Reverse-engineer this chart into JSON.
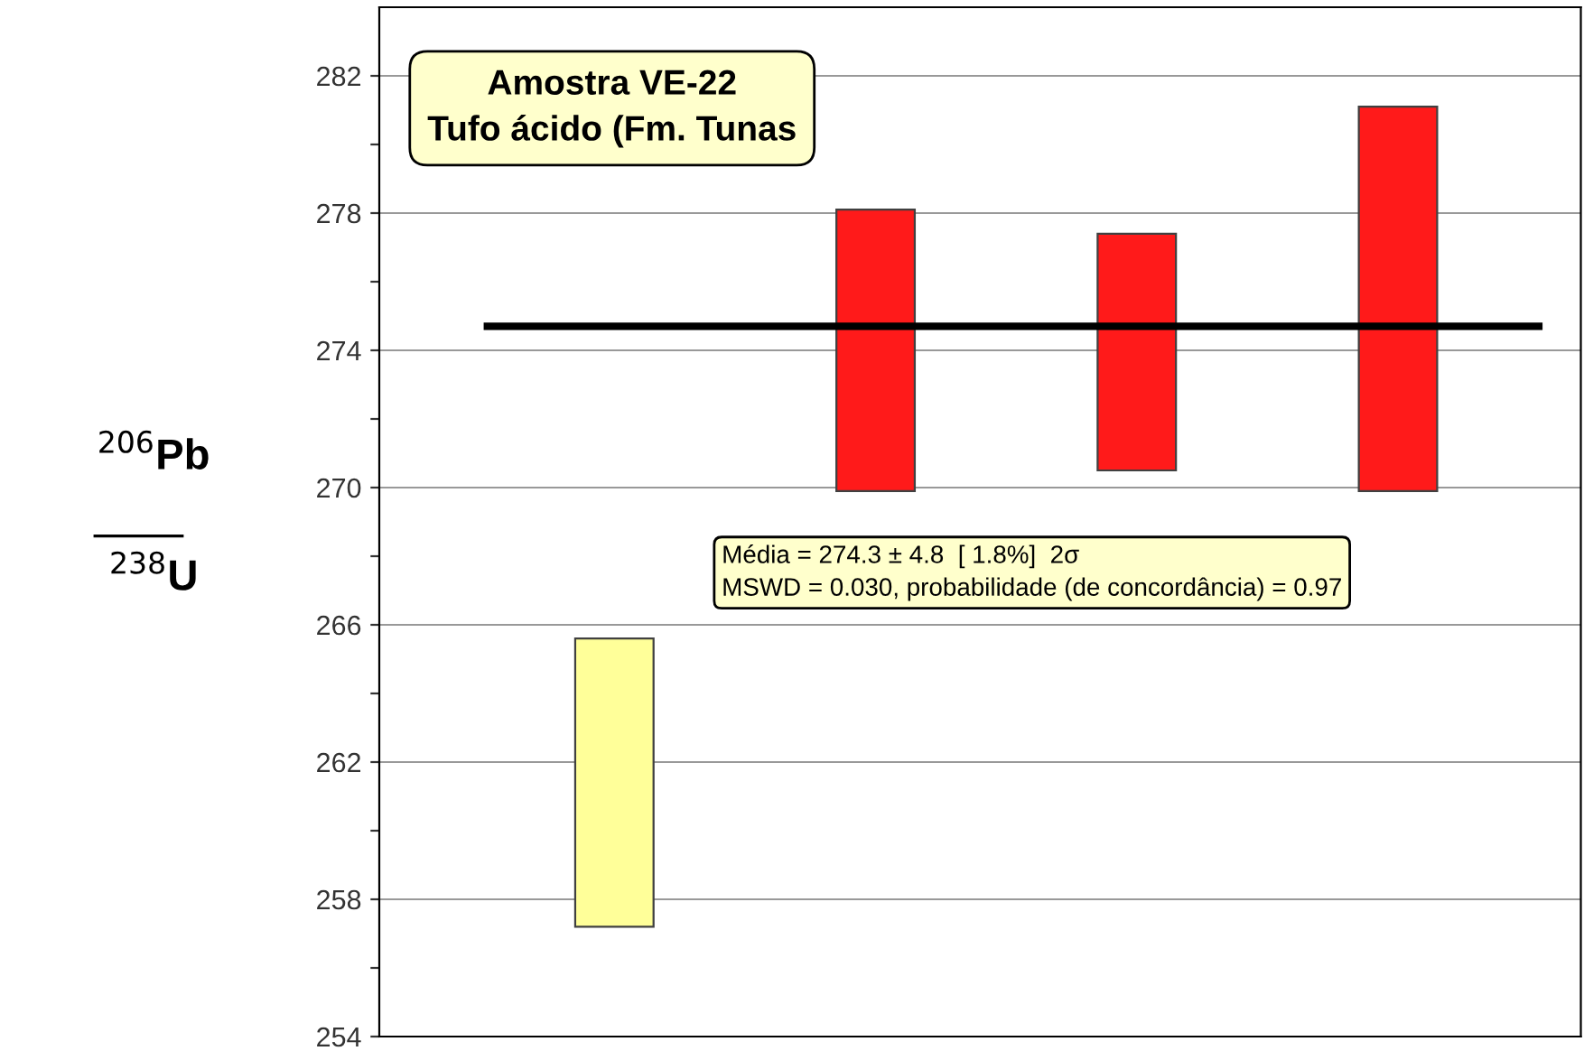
{
  "chart_data": {
    "type": "bar",
    "title": "Amostra VE-22\nTufo ácido (Fm. Tunas",
    "ylabel": "$^{206}$Pb\n$^{238}$U",
    "categories": [
      null,
      null,
      null,
      null
    ],
    "base": [
      257.2,
      269.9,
      270.5,
      269.9
    ],
    "values": [
      8.4,
      8.2,
      6.9,
      11.2
    ],
    "colors": [
      "#ffff99",
      "#ff1a1a",
      "#ff1a1a",
      "#ff1a1a"
    ],
    "ylim": [
      254,
      284
    ],
    "yticks": [
      254,
      {
        "value": 256,
        "label": null
      },
      258,
      {
        "value": 260,
        "label": null
      },
      262,
      {
        "value": 264,
        "label": null
      },
      266,
      {
        "value": 268,
        "label": null
      },
      270,
      {
        "value": 272,
        "label": null
      },
      274,
      {
        "value": 276,
        "label": null
      },
      278,
      {
        "value": 280,
        "label": null
      },
      282
    ],
    "grid": "y",
    "ref_lines": [
      {
        "axis": "y",
        "value": 274.7,
        "color": "#000000"
      }
    ],
    "annotations": [
      "Média = 274.3 ± 4.8  [ 1.8%]  2σ\nMSWD = 0.030, probabilidade (de concordância) = 0.97"
    ]
  }
}
